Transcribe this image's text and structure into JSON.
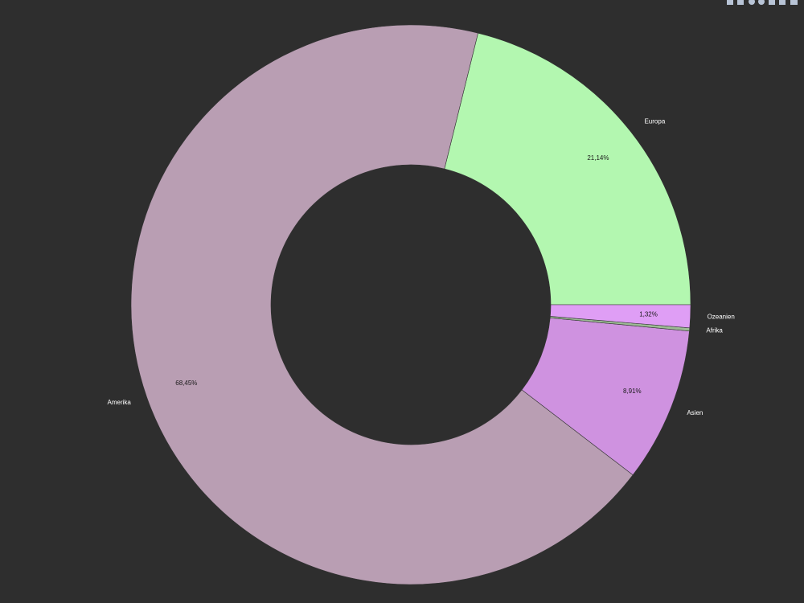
{
  "chart_data": {
    "type": "pie",
    "categories": [
      "Europa",
      "Amerika",
      "Asien",
      "Afrika",
      "Ozeanien"
    ],
    "values": [
      21.14,
      68.45,
      8.91,
      0.18,
      1.32
    ],
    "value_labels": [
      "21,14%",
      "68,45%",
      "8,91%",
      null,
      "1,32%"
    ],
    "colors": [
      "#b3f7b0",
      "#b99eb3",
      "#cf92e0",
      "#9cba94",
      "#df9ef5"
    ],
    "inner_radius_ratio": 0.5
  }
}
